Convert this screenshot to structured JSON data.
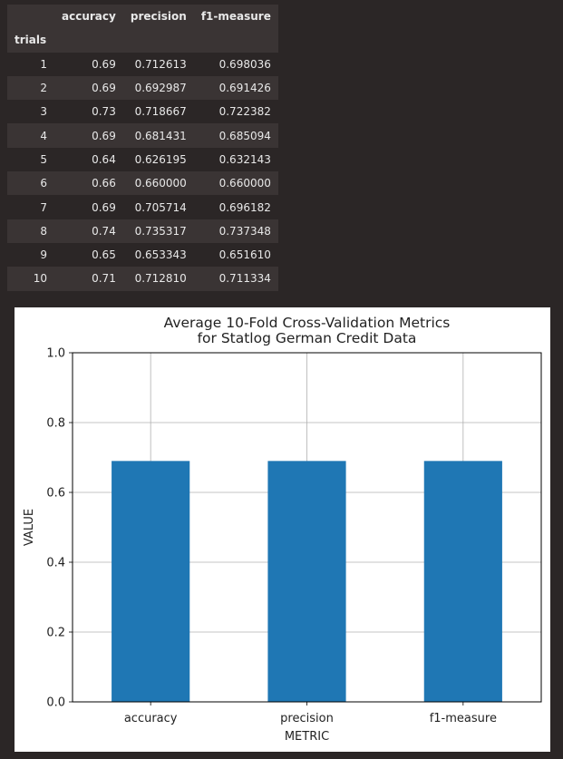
{
  "table": {
    "columns": [
      "accuracy",
      "precision",
      "f1-measure"
    ],
    "index_name": "trials",
    "rows": [
      {
        "trial": "1",
        "accuracy": "0.69",
        "precision": "0.712613",
        "f1": "0.698036"
      },
      {
        "trial": "2",
        "accuracy": "0.69",
        "precision": "0.692987",
        "f1": "0.691426"
      },
      {
        "trial": "3",
        "accuracy": "0.73",
        "precision": "0.718667",
        "f1": "0.722382"
      },
      {
        "trial": "4",
        "accuracy": "0.69",
        "precision": "0.681431",
        "f1": "0.685094"
      },
      {
        "trial": "5",
        "accuracy": "0.64",
        "precision": "0.626195",
        "f1": "0.632143"
      },
      {
        "trial": "6",
        "accuracy": "0.66",
        "precision": "0.660000",
        "f1": "0.660000"
      },
      {
        "trial": "7",
        "accuracy": "0.69",
        "precision": "0.705714",
        "f1": "0.696182"
      },
      {
        "trial": "8",
        "accuracy": "0.74",
        "precision": "0.735317",
        "f1": "0.737348"
      },
      {
        "trial": "9",
        "accuracy": "0.65",
        "precision": "0.653343",
        "f1": "0.651610"
      },
      {
        "trial": "10",
        "accuracy": "0.71",
        "precision": "0.712810",
        "f1": "0.711334"
      }
    ]
  },
  "chart_data": {
    "type": "bar",
    "title": "Average 10-Fold Cross-Validation Metrics\nfor Statlog German Credit Data",
    "title_lines": [
      "Average 10-Fold Cross-Validation Metrics",
      "for Statlog German Credit Data"
    ],
    "categories": [
      "accuracy",
      "precision",
      "f1-measure"
    ],
    "values": [
      0.69,
      0.69,
      0.69
    ],
    "xlabel": "METRIC",
    "ylabel": "VALUE",
    "ylim": [
      0,
      1.0
    ],
    "yticks": [
      "0.0",
      "0.2",
      "0.4",
      "0.6",
      "0.8",
      "1.0"
    ],
    "grid": true,
    "bar_color": "#1f77b4"
  }
}
